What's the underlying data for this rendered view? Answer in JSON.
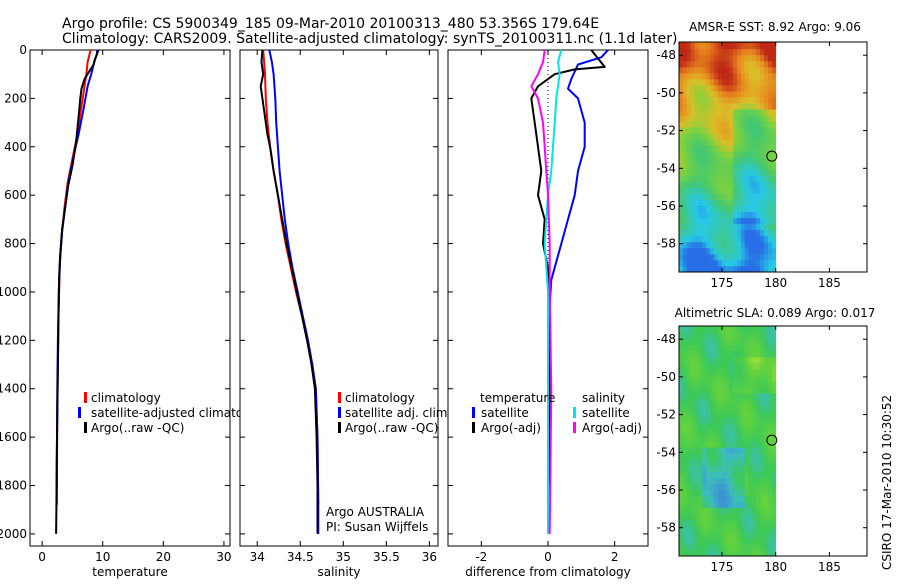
{
  "header": {
    "line1": "Argo profile: CS 5900349_185 09-Mar-2010 20100313_480 53.356S 179.64E",
    "line2": "Climatology: CARS2009. Satellite-adjusted climatology: synTS_20100311.nc (1.1d later)"
  },
  "footer": {
    "argo_text": "Argo AUSTRALIA",
    "pi_text": "PI: Susan Wijffels",
    "stamp": "CSIRO 17-Mar-2010 10:30:52"
  },
  "colors": {
    "climatology": "#ff0000",
    "satellite": "#0000ff",
    "argo": "#000000",
    "salinity_satellite": "#00e5e5",
    "salinity_argo": "#ff00ff"
  },
  "chart_data": [
    {
      "type": "line",
      "xlabel": "temperature",
      "ylabel": "",
      "xlim": [
        -2,
        31
      ],
      "ylim": [
        2050,
        0
      ],
      "xticks": [
        0,
        10,
        20,
        30
      ],
      "yticks": [
        0,
        200,
        400,
        600,
        800,
        1000,
        1200,
        1400,
        1600,
        1800,
        2000
      ],
      "legend": [
        "climatology",
        "satellite-adjusted climatolog",
        "Argo(..raw -QC)"
      ],
      "series": [
        {
          "name": "climatology",
          "color": "#ff0000",
          "x": [
            8.0,
            7.8,
            7.5,
            7.3,
            7.0,
            6.4,
            5.8,
            5.0,
            4.2,
            3.7,
            3.3,
            3.0,
            2.9,
            2.8,
            2.7,
            2.6,
            2.5,
            2.45,
            2.4
          ],
          "y": [
            0,
            20,
            50,
            100,
            150,
            250,
            350,
            450,
            550,
            650,
            750,
            850,
            900,
            1000,
            1100,
            1300,
            1500,
            1700,
            1880
          ]
        },
        {
          "name": "satellite-adjusted climatology",
          "color": "#0000ff",
          "x": [
            9.1,
            9.0,
            8.6,
            8.1,
            7.5,
            6.8,
            6.0,
            5.1,
            4.3,
            3.8,
            3.3,
            3.0,
            2.9,
            2.75,
            2.6,
            2.5,
            2.45,
            2.4
          ],
          "y": [
            0,
            20,
            50,
            100,
            150,
            250,
            350,
            450,
            550,
            650,
            750,
            850,
            900,
            1000,
            1200,
            1400,
            1600,
            1880
          ]
        },
        {
          "name": "Argo(..raw -QC)",
          "color": "#000000",
          "x": [
            9.3,
            8.7,
            8.5,
            7.0,
            6.5,
            6.3,
            6.0,
            5.6,
            5.0,
            4.3,
            3.8,
            3.3,
            3.0,
            2.8,
            2.7,
            2.6,
            2.5,
            2.4,
            2.35,
            2.3
          ],
          "y": [
            0,
            40,
            60,
            120,
            160,
            200,
            280,
            380,
            480,
            560,
            650,
            740,
            840,
            940,
            1100,
            1300,
            1500,
            1700,
            1900,
            2000
          ]
        }
      ]
    },
    {
      "type": "line",
      "xlabel": "salinity",
      "xlim": [
        33.8,
        36.1
      ],
      "ylim": [
        2050,
        0
      ],
      "xticks": [
        34,
        34.5,
        35,
        35.5,
        36
      ],
      "legend": [
        "climatology",
        "satellite adj. clim.",
        "Argo(..raw -QC)"
      ],
      "series": [
        {
          "name": "climatology",
          "color": "#ff0000",
          "x": [
            34.07,
            34.08,
            34.09,
            34.1,
            34.12,
            34.15,
            34.19,
            34.24,
            34.28,
            34.33,
            34.39,
            34.45,
            34.52,
            34.58,
            34.64,
            34.68,
            34.7,
            34.71
          ],
          "y": [
            0,
            50,
            100,
            200,
            300,
            400,
            500,
            600,
            700,
            800,
            900,
            1000,
            1100,
            1200,
            1300,
            1400,
            1600,
            1880
          ]
        },
        {
          "name": "satellite adj. clim.",
          "color": "#0000ff",
          "x": [
            34.14,
            34.17,
            34.19,
            34.21,
            34.22,
            34.24,
            34.26,
            34.29,
            34.32,
            34.36,
            34.41,
            34.47,
            34.53,
            34.59,
            34.64,
            34.68,
            34.7,
            34.71,
            34.71
          ],
          "y": [
            0,
            50,
            100,
            200,
            300,
            400,
            500,
            600,
            700,
            800,
            900,
            1000,
            1100,
            1200,
            1300,
            1400,
            1600,
            1880,
            2000
          ]
        },
        {
          "name": "Argo(..raw -QC)",
          "color": "#000000",
          "x": [
            34.06,
            34.05,
            34.07,
            34.04,
            34.06,
            34.08,
            34.1,
            34.12,
            34.15,
            34.19,
            34.24,
            34.29,
            34.34,
            34.4,
            34.46,
            34.52,
            34.58,
            34.63,
            34.67,
            34.69,
            34.7,
            34.7
          ],
          "y": [
            0,
            50,
            100,
            150,
            200,
            250,
            300,
            350,
            400,
            500,
            600,
            700,
            800,
            900,
            1000,
            1100,
            1200,
            1300,
            1400,
            1600,
            1800,
            2000
          ]
        }
      ]
    },
    {
      "type": "line",
      "xlabel": "difference from climatology",
      "xlim": [
        -3,
        3
      ],
      "ylim": [
        2050,
        0
      ],
      "xticks": [
        -2,
        0,
        2
      ],
      "legend_titles": [
        "temperature",
        "salinity"
      ],
      "legend": [
        "satellite",
        "Argo(-adj)",
        "satellite",
        "Argo(-adj)"
      ],
      "series": [
        {
          "name": "temperature satellite",
          "color": "#0000ff",
          "x": [
            1.8,
            1.6,
            0.9,
            0.7,
            0.6,
            0.9,
            1.1,
            1.1,
            0.9,
            0.8,
            0.6,
            0.3,
            0.1,
            0.05,
            0.03,
            0.02,
            0.0
          ],
          "y": [
            0,
            30,
            60,
            120,
            160,
            200,
            300,
            400,
            500,
            600,
            700,
            850,
            950,
            1050,
            1200,
            1500,
            2000
          ]
        },
        {
          "name": "temperature Argo(-adj)",
          "color": "#000000",
          "x": [
            1.3,
            1.7,
            0.8,
            0.2,
            -0.3,
            -0.5,
            -0.4,
            -0.3,
            -0.2,
            -0.3,
            -0.1,
            -0.15,
            0.0,
            0.05,
            0.05,
            0.05,
            0.05
          ],
          "y": [
            0,
            70,
            80,
            100,
            150,
            200,
            300,
            400,
            500,
            600,
            700,
            800,
            900,
            1000,
            1300,
            1600,
            1800
          ]
        },
        {
          "name": "salinity satellite",
          "color": "#00e5e5",
          "x": [
            0.4,
            0.3,
            0.35,
            0.25,
            0.2,
            0.15,
            0.1,
            0.0,
            -0.05,
            -0.1,
            -0.05,
            0.0,
            0.0,
            0.0
          ],
          "y": [
            0,
            50,
            100,
            200,
            300,
            400,
            500,
            600,
            700,
            800,
            900,
            1000,
            1500,
            2000
          ]
        },
        {
          "name": "salinity Argo(-adj)",
          "color": "#ff00ff",
          "x": [
            -0.1,
            -0.15,
            -0.3,
            -0.5,
            -0.3,
            -0.15,
            -0.1,
            -0.05,
            0.0,
            0.05,
            0.05,
            0.1,
            0.05
          ],
          "y": [
            0,
            50,
            100,
            150,
            200,
            300,
            400,
            500,
            600,
            800,
            1000,
            1400,
            2000
          ]
        }
      ]
    },
    {
      "type": "heatmap",
      "title": "AMSR-E SST: 8.92 Argo: 9.06",
      "xlim": [
        171,
        188.5
      ],
      "ylim": [
        -59.5,
        -47.3
      ],
      "xticks": [
        175,
        180,
        185
      ],
      "yticks": [
        -48,
        -50,
        -52,
        -54,
        -56,
        -58
      ],
      "marker": {
        "lon": 179.64,
        "lat": -53.356
      }
    },
    {
      "type": "heatmap",
      "title": "Altimetric SLA: 0.089 Argo: 0.017",
      "xlim": [
        171,
        188.5
      ],
      "ylim": [
        -59.5,
        -47.3
      ],
      "xticks": [
        175,
        180,
        185
      ],
      "yticks": [
        -48,
        -50,
        -52,
        -54,
        -56,
        -58
      ],
      "marker": {
        "lon": 179.64,
        "lat": -53.356
      }
    }
  ]
}
